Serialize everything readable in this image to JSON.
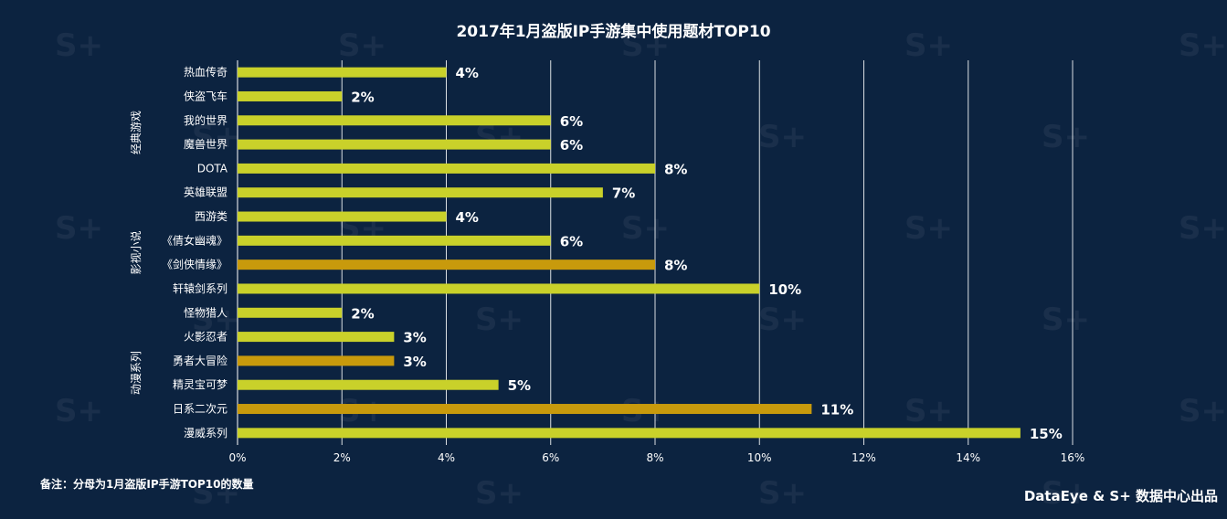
{
  "title": "2017年1月盗版IP手游集中使用题材TOP10",
  "footnote": "备注：分母为1月盗版IP手游TOP10的数量",
  "credit": "DataEye & S+ 数据中心出品",
  "colors": {
    "background": "#0c2340",
    "bar_default": "#c9d12a",
    "bar_highlight": "#c89a0c",
    "grid": "#ffffff",
    "text": "#ffffff"
  },
  "chart_data": {
    "type": "bar",
    "orientation": "horizontal",
    "title": "2017年1月盗版IP手游集中使用题材TOP10",
    "categories": [
      "热血传奇",
      "侠盗飞车",
      "我的世界",
      "魔兽世界",
      "DOTA",
      "英雄联盟",
      "西游类",
      "《倩女幽魂》",
      "《剑侠情缘》",
      "轩辕剑系列",
      "怪物猎人",
      "火影忍者",
      "勇者大冒险",
      "精灵宝可梦",
      "日系二次元",
      "漫威系列"
    ],
    "values": [
      4,
      2,
      6,
      6,
      8,
      7,
      4,
      6,
      8,
      10,
      2,
      3,
      3,
      5,
      11,
      15
    ],
    "value_labels": [
      "4%",
      "2%",
      "6%",
      "6%",
      "8%",
      "7%",
      "4%",
      "6%",
      "8%",
      "10%",
      "2%",
      "3%",
      "3%",
      "5%",
      "11%",
      "15%"
    ],
    "highlighted": [
      "《剑侠情缘》",
      "勇者大冒险",
      "日系二次元"
    ],
    "groups": [
      {
        "name": "经典游戏",
        "from": 0,
        "to": 5
      },
      {
        "name": "影视小说",
        "from": 6,
        "to": 9
      },
      {
        "name": "动漫系列",
        "from": 10,
        "to": 15
      }
    ],
    "xlim": [
      0,
      16
    ],
    "x_ticks": [
      0,
      2,
      4,
      6,
      8,
      10,
      12,
      14,
      16
    ],
    "x_tick_labels": [
      "0%",
      "2%",
      "4%",
      "6%",
      "8%",
      "10%",
      "12%",
      "14%",
      "16%"
    ],
    "unit": "%",
    "grid": true,
    "legend": "none"
  }
}
